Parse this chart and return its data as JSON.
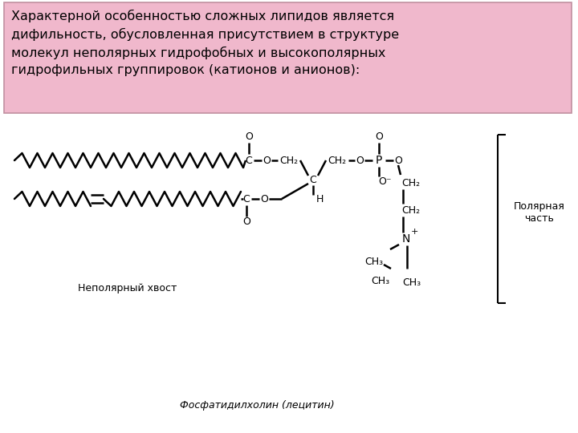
{
  "text_box_text": "Характерной особенностью сложных липидов является\nдифильность, обусловленная присутствием в структуре\nмолекул неполярных гидрофобных и высокополярных\nгидрофильных группировок (катионов и анионов):",
  "text_box_bg": "#F0B8CC",
  "text_box_border": "#C090A0",
  "bg_color": "#FFFFFF",
  "label_nonpolar": "Неполярный хвост",
  "label_polar": "Полярная\nчасть",
  "label_molecule": "Фосфатидилхолин (лецитин)",
  "text_fontsize": 11.5,
  "label_fontsize": 9,
  "molecule_label_fontsize": 9
}
